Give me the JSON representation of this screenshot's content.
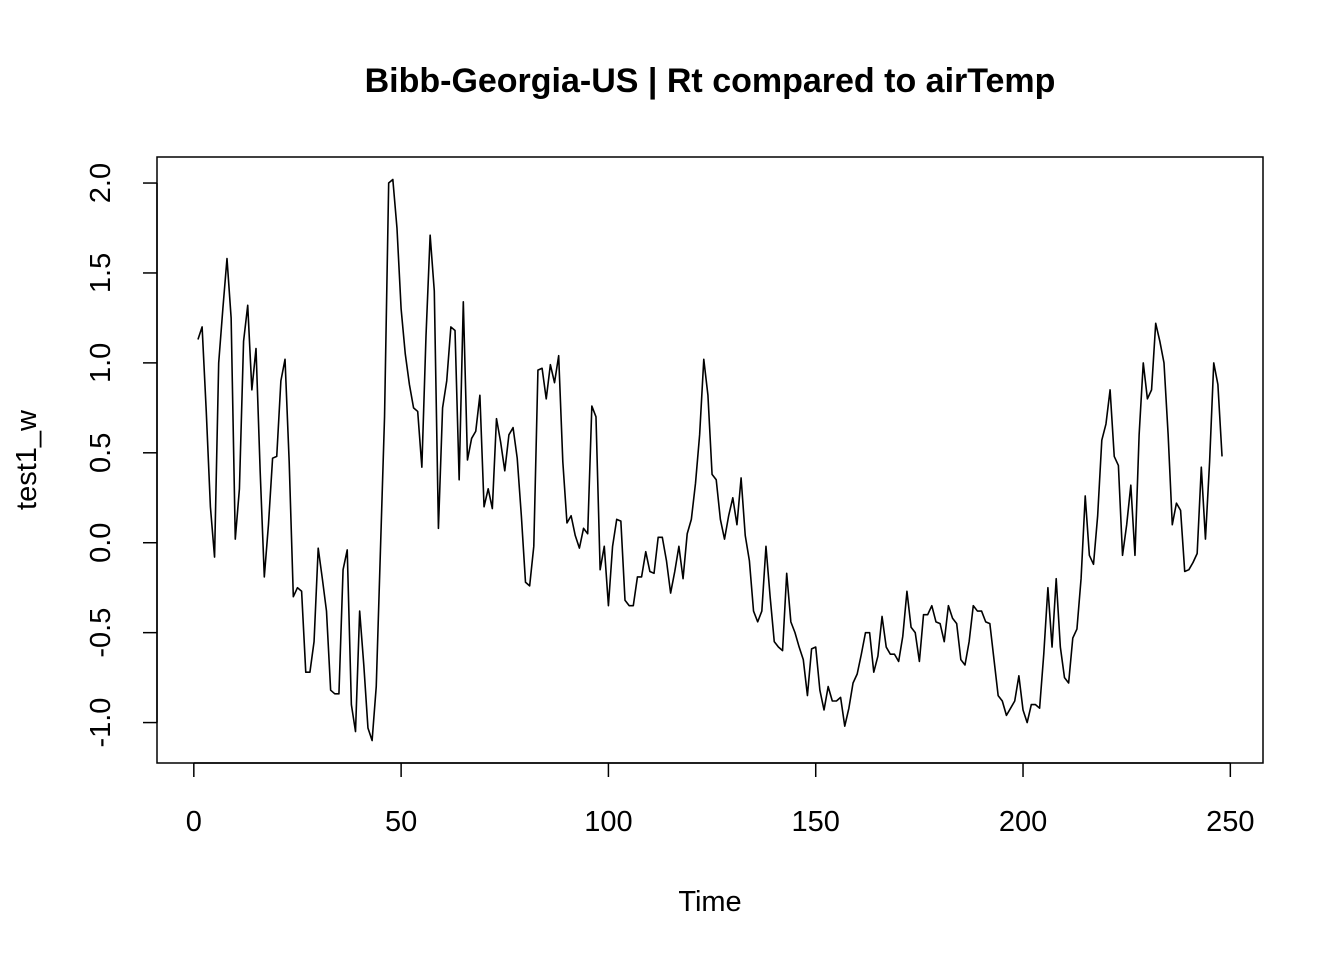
{
  "chart_data": {
    "type": "line",
    "title": "Bibb-Georgia-US | Rt compared to airTemp",
    "xlabel": "Time",
    "ylabel": "test1_w",
    "xlim": [
      1,
      248
    ],
    "ylim": [
      -1.1,
      2.02
    ],
    "x_ticks": [
      0,
      50,
      100,
      150,
      200,
      250
    ],
    "x_tick_labels": [
      "0",
      "50",
      "100",
      "150",
      "200",
      "250"
    ],
    "y_ticks": [
      -1.0,
      -0.5,
      0.0,
      0.5,
      1.0,
      1.5,
      2.0
    ],
    "y_tick_labels": [
      "-1.0",
      "-0.5",
      "0.0",
      "0.5",
      "1.0",
      "1.5",
      "2.0"
    ],
    "grid": false,
    "series": [
      {
        "values": [
          1.13,
          1.2,
          0.73,
          0.2,
          -0.08,
          1.0,
          1.3,
          1.58,
          1.25,
          0.02,
          0.3,
          1.12,
          1.32,
          0.85,
          1.08,
          0.4,
          -0.19,
          0.1,
          0.47,
          0.48,
          0.9,
          1.02,
          0.45,
          -0.3,
          -0.25,
          -0.27,
          -0.72,
          -0.72,
          -0.55,
          -0.03,
          -0.2,
          -0.38,
          -0.82,
          -0.84,
          -0.84,
          -0.15,
          -0.04,
          -0.9,
          -1.05,
          -0.38,
          -0.68,
          -1.03,
          -1.1,
          -0.8,
          -0.05,
          0.7,
          2.0,
          2.02,
          1.75,
          1.3,
          1.05,
          0.88,
          0.75,
          0.73,
          0.42,
          1.15,
          1.71,
          1.4,
          0.08,
          0.75,
          0.9,
          1.2,
          1.18,
          0.35,
          1.34,
          0.46,
          0.58,
          0.62,
          0.82,
          0.2,
          0.3,
          0.19,
          0.69,
          0.56,
          0.4,
          0.6,
          0.64,
          0.47,
          0.15,
          -0.22,
          -0.24,
          -0.02,
          0.96,
          0.97,
          0.8,
          0.99,
          0.89,
          1.04,
          0.45,
          0.11,
          0.15,
          0.04,
          -0.03,
          0.08,
          0.05,
          0.76,
          0.7,
          -0.15,
          -0.02,
          -0.35,
          -0.02,
          0.13,
          0.12,
          -0.32,
          -0.35,
          -0.35,
          -0.19,
          -0.19,
          -0.05,
          -0.16,
          -0.17,
          0.03,
          0.03,
          -0.1,
          -0.28,
          -0.16,
          -0.02,
          -0.2,
          0.05,
          0.13,
          0.33,
          0.6,
          1.02,
          0.82,
          0.38,
          0.35,
          0.13,
          0.02,
          0.15,
          0.25,
          0.1,
          0.36,
          0.04,
          -0.1,
          -0.38,
          -0.44,
          -0.38,
          -0.02,
          -0.3,
          -0.55,
          -0.58,
          -0.6,
          -0.17,
          -0.44,
          -0.5,
          -0.58,
          -0.65,
          -0.85,
          -0.59,
          -0.58,
          -0.82,
          -0.93,
          -0.8,
          -0.88,
          -0.88,
          -0.86,
          -1.02,
          -0.92,
          -0.78,
          -0.73,
          -0.62,
          -0.5,
          -0.5,
          -0.72,
          -0.63,
          -0.41,
          -0.58,
          -0.62,
          -0.62,
          -0.66,
          -0.52,
          -0.27,
          -0.47,
          -0.5,
          -0.66,
          -0.4,
          -0.4,
          -0.35,
          -0.44,
          -0.45,
          -0.55,
          -0.35,
          -0.42,
          -0.45,
          -0.65,
          -0.68,
          -0.55,
          -0.35,
          -0.38,
          -0.38,
          -0.44,
          -0.45,
          -0.65,
          -0.85,
          -0.88,
          -0.96,
          -0.92,
          -0.88,
          -0.74,
          -0.93,
          -1.0,
          -0.9,
          -0.9,
          -0.92,
          -0.62,
          -0.25,
          -0.58,
          -0.2,
          -0.58,
          -0.75,
          -0.78,
          -0.53,
          -0.48,
          -0.2,
          0.26,
          -0.07,
          -0.12,
          0.15,
          0.57,
          0.66,
          0.85,
          0.48,
          0.43,
          -0.07,
          0.1,
          0.32,
          -0.07,
          0.6,
          1.0,
          0.8,
          0.85,
          1.22,
          1.12,
          1.0,
          0.6,
          0.1,
          0.22,
          0.18,
          -0.16,
          -0.15,
          -0.11,
          -0.06,
          0.42,
          0.02,
          0.45,
          1.0,
          0.88,
          0.48
        ]
      }
    ]
  }
}
